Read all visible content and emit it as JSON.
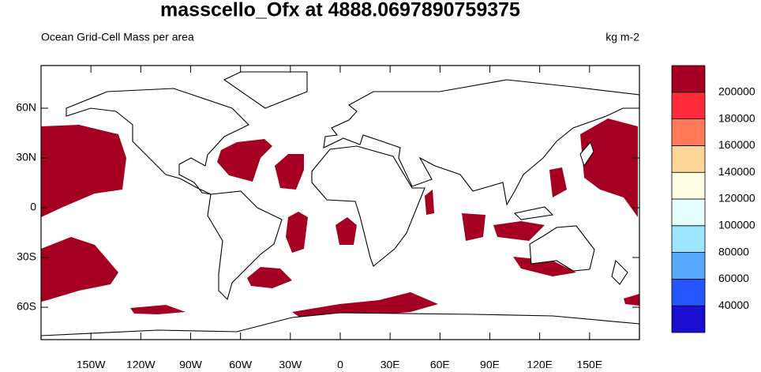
{
  "chart_data": {
    "type": "map",
    "title": "masscello_Ofx at 4888.0697890759375",
    "subtitle": "Ocean Grid-Cell Mass per area",
    "units": "kg m-2",
    "xlim": [
      -180,
      180
    ],
    "ylim": [
      -79.5,
      85.7
    ],
    "xticks": [
      {
        "value": -150,
        "label": "150W"
      },
      {
        "value": -120,
        "label": "120W"
      },
      {
        "value": -90,
        "label": "90W"
      },
      {
        "value": -60,
        "label": "60W"
      },
      {
        "value": -30,
        "label": "30W"
      },
      0,
      {
        "value": 30,
        "label": "30E"
      },
      {
        "value": 60,
        "label": "60E"
      },
      {
        "value": 90,
        "label": "90E"
      },
      {
        "value": 120,
        "label": "120E"
      },
      {
        "value": 150,
        "label": "150E"
      }
    ],
    "yticks": [
      {
        "value": -60,
        "label": "60S"
      },
      {
        "value": -30,
        "label": "30S"
      },
      0,
      {
        "value": 30,
        "label": "30N"
      },
      {
        "value": 60,
        "label": "60N"
      }
    ],
    "colorbar": {
      "levels": [
        40000,
        60000,
        80000,
        100000,
        120000,
        140000,
        160000,
        180000,
        200000
      ],
      "colors": [
        "#1a0fd0",
        "#2455ff",
        "#58a8ff",
        "#9ee6ff",
        "#e4fffe",
        "#fffde4",
        "#ffd699",
        "#ff7a58",
        "#ff2a3a",
        "#a50021"
      ]
    }
  }
}
